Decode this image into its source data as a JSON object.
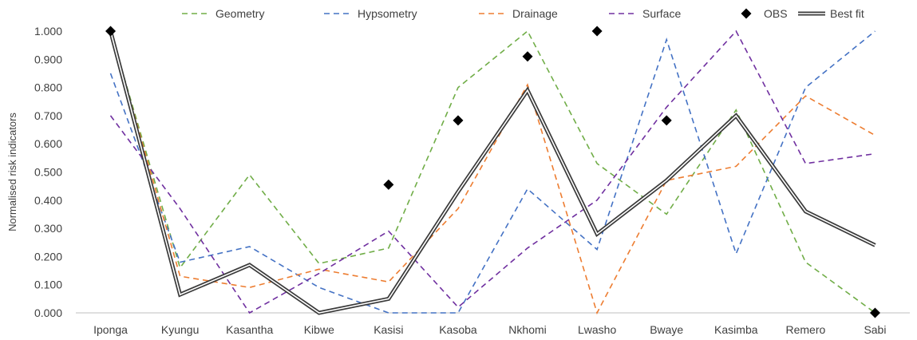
{
  "chart_data": {
    "type": "line",
    "title": "",
    "xlabel": "",
    "ylabel": "Normalised risk indicators",
    "ylim": [
      0,
      1
    ],
    "y_ticks": [
      "0.000",
      "0.100",
      "0.200",
      "0.300",
      "0.400",
      "0.500",
      "0.600",
      "0.700",
      "0.800",
      "0.900",
      "1.000"
    ],
    "grid": false,
    "legend_position": "top",
    "categories": [
      "Iponga",
      "Kyungu",
      "Kasantha",
      "Kibwe",
      "Kasisi",
      "Kasoba",
      "Nkhomi",
      "Lwasho",
      "Bwaye",
      "Kasimba",
      "Remero",
      "Sabi"
    ],
    "series": [
      {
        "name": "Geometry",
        "style": "dashed",
        "color": "#70AD47",
        "values": [
          1.0,
          0.16,
          0.49,
          0.175,
          0.23,
          0.8,
          1.0,
          0.53,
          0.35,
          0.72,
          0.18,
          0.0
        ]
      },
      {
        "name": "Hypsometry",
        "style": "dashed",
        "color": "#4472C4",
        "values": [
          0.85,
          0.18,
          0.235,
          0.09,
          0.0,
          0.0,
          0.44,
          0.225,
          0.97,
          0.21,
          0.8,
          1.0
        ]
      },
      {
        "name": "Drainage",
        "style": "dashed",
        "color": "#ED7D31",
        "values": [
          1.0,
          0.13,
          0.09,
          0.155,
          0.11,
          0.37,
          0.81,
          0.0,
          0.47,
          0.52,
          0.77,
          0.63
        ]
      },
      {
        "name": "Surface",
        "style": "dashed",
        "color": "#7030A0",
        "values": [
          0.7,
          0.37,
          0.0,
          0.14,
          0.29,
          0.02,
          0.23,
          0.4,
          0.73,
          1.0,
          0.53,
          0.565
        ]
      },
      {
        "name": "OBS",
        "style": "markers",
        "color": "#000000",
        "values": [
          1.0,
          null,
          null,
          null,
          0.455,
          0.683,
          0.91,
          1.0,
          0.683,
          null,
          null,
          0.0
        ]
      },
      {
        "name": "Best fit",
        "style": "double-line",
        "color": "#3a3a3a",
        "values": [
          1.0,
          0.065,
          0.17,
          0.0,
          0.05,
          0.43,
          0.79,
          0.28,
          0.47,
          0.7,
          0.36,
          0.24
        ]
      }
    ]
  }
}
